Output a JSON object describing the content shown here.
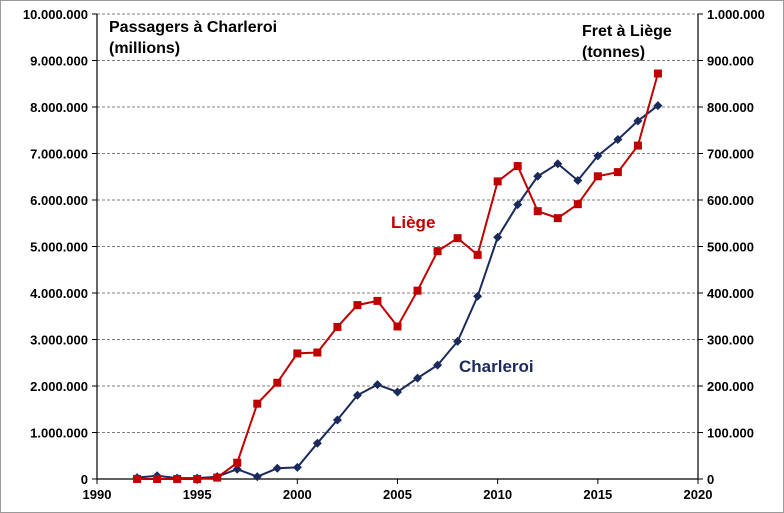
{
  "chart_data": {
    "type": "line",
    "left_axis_title_lines": [
      "Passagers à Charleroi",
      "(millions)"
    ],
    "right_axis_title_lines": [
      "Fret à Liège",
      "(tonnes)"
    ],
    "x_ticks": [
      "1990",
      "1995",
      "2000",
      "2005",
      "2010",
      "2015",
      "2020"
    ],
    "y_left_ticks": [
      "0",
      "1.000.000",
      "2.000.000",
      "3.000.000",
      "4.000.000",
      "5.000.000",
      "6.000.000",
      "7.000.000",
      "8.000.000",
      "9.000.000",
      "10.000.000"
    ],
    "y_right_ticks": [
      "0",
      "100.000",
      "200.000",
      "300.000",
      "400.000",
      "500.000",
      "600.000",
      "700.000",
      "800.000",
      "900.000",
      "1.000.000"
    ],
    "xlim": [
      1990,
      2020
    ],
    "ylim_left": [
      0,
      10000000
    ],
    "ylim_right": [
      0,
      1000000
    ],
    "grid": "horizontal dashed",
    "series": [
      {
        "name": "Charleroi",
        "axis": "left",
        "color": "#1b2a5c",
        "marker": "diamond",
        "x": [
          1992,
          1993,
          1994,
          1995,
          1996,
          1997,
          1998,
          1999,
          2000,
          2001,
          2002,
          2003,
          2004,
          2005,
          2006,
          2007,
          2008,
          2009,
          2010,
          2011,
          2012,
          2013,
          2014,
          2015,
          2016,
          2017,
          2018
        ],
        "values": [
          30000,
          70000,
          20000,
          20000,
          50000,
          210000,
          50000,
          230000,
          250000,
          770000,
          1270000,
          1800000,
          2030000,
          1870000,
          2170000,
          2450000,
          2960000,
          3930000,
          5200000,
          5900000,
          6510000,
          6780000,
          6420000,
          6950000,
          7300000,
          7700000,
          8030000
        ]
      },
      {
        "name": "Liège",
        "axis": "right",
        "color": "#c00000",
        "marker": "square",
        "x": [
          1992,
          1993,
          1994,
          1995,
          1996,
          1997,
          1998,
          1999,
          2000,
          2001,
          2002,
          2003,
          2004,
          2005,
          2006,
          2007,
          2008,
          2009,
          2010,
          2011,
          2012,
          2013,
          2014,
          2015,
          2016,
          2017,
          2018
        ],
        "values": [
          0,
          0,
          0,
          0,
          3000,
          35000,
          162000,
          207000,
          270000,
          272000,
          327000,
          374000,
          383000,
          328000,
          405000,
          490000,
          518000,
          482000,
          640000,
          673000,
          576000,
          561000,
          591000,
          651000,
          660000,
          717000,
          872000
        ]
      }
    ]
  }
}
